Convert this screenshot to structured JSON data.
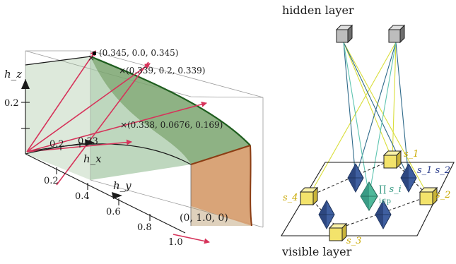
{
  "left_panel": {
    "axes": {
      "hz_label": "h_z",
      "hx_label": "h_x",
      "hy_label": "h_y",
      "hz_ticks": [
        "0.2"
      ],
      "hx_ticks": [
        "0.2",
        "0.33"
      ],
      "hy_ticks": [
        "0.2",
        "0.4",
        "0.6",
        "0.8",
        "1.0"
      ]
    },
    "points": [
      "(0.345, 0.0, 0.345)",
      "(0.339, 0.2, 0.339)",
      "(0.338, 0.0676, 0.169)",
      "(0, 1.0, 0)"
    ],
    "colors": {
      "surface": "#7aa56e",
      "surface_edge": "#1f5e1f",
      "side_face": "#a8c9a8",
      "orange_face": "#f2a06e",
      "brown_edge": "#8b3d14",
      "arrows": "#d6335a"
    }
  },
  "right_panel": {
    "hidden_layer_label": "hidden layer",
    "visible_layer_label": "visible layer",
    "spin_labels": {
      "s1": "s_1",
      "s2": "s_2",
      "s3": "s_3",
      "s4": "s_4",
      "s1s2": "s_1 s_2",
      "product": "∏ s_i",
      "product_sub": "i∈p"
    },
    "colors": {
      "hidden_cube": "#bdbdbd",
      "visible_cube": "#f3e36b",
      "octahedron": "#3f5fa0",
      "center_octahedron": "#4fb89a",
      "line_yellow": "#d9de3a",
      "line_blue": "#2f6a8a",
      "line_teal": "#5ec4b0",
      "spin_label": "#c9a800",
      "s1s2_label": "#2c3e8c",
      "product_label": "#3a9b85"
    }
  }
}
